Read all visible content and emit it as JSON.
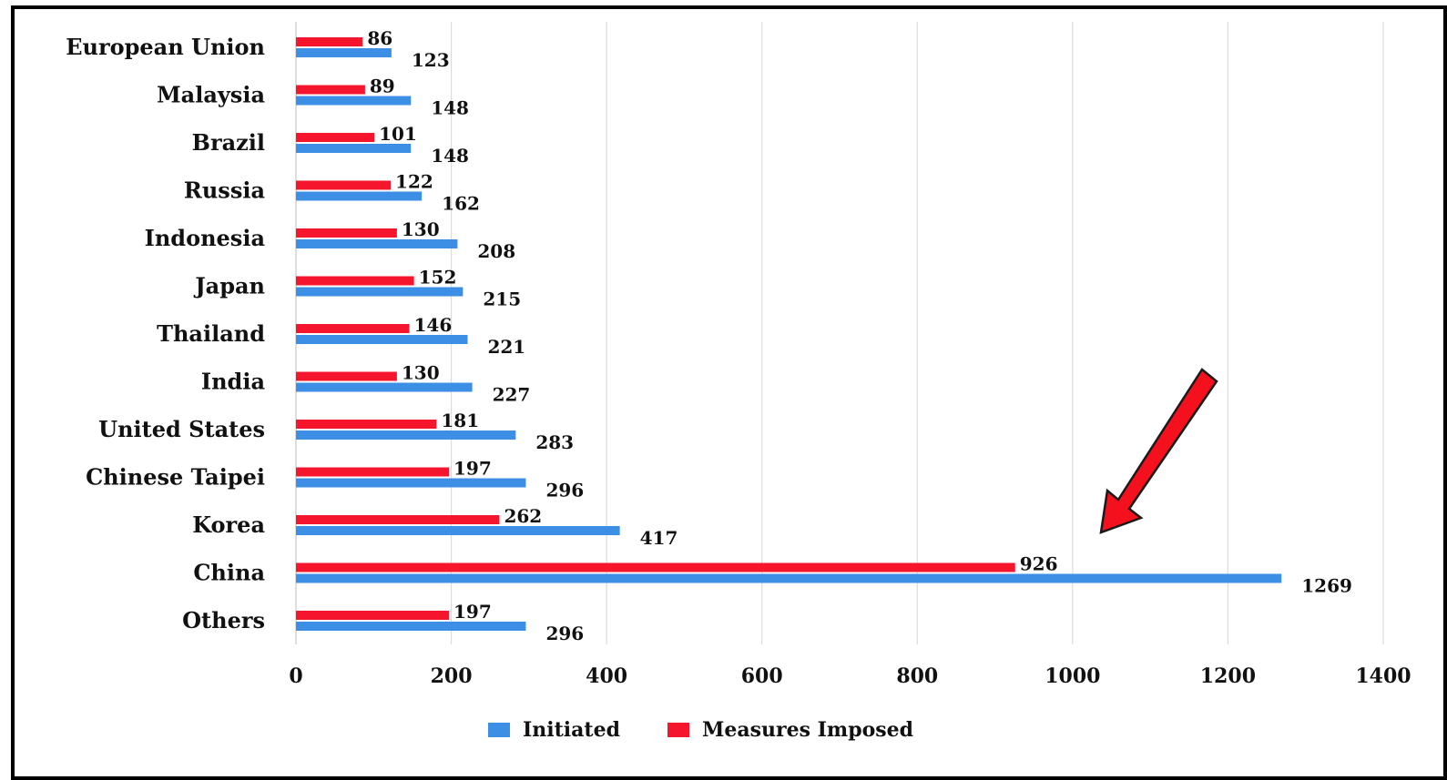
{
  "chart_data": {
    "type": "bar",
    "orientation": "horizontal",
    "categories": [
      "European Union",
      "Malaysia",
      "Brazil",
      "Russia",
      "Indonesia",
      "Japan",
      "Thailand",
      "India",
      "United States",
      "Chinese Taipei",
      "Korea",
      "China",
      "Others"
    ],
    "series": [
      {
        "name": "Initiated",
        "color": "#3d8fe6",
        "values": [
          123,
          148,
          148,
          162,
          208,
          215,
          221,
          227,
          283,
          296,
          417,
          1269,
          296
        ]
      },
      {
        "name": "Measures Imposed",
        "color": "#f5162e",
        "values": [
          86,
          89,
          101,
          122,
          130,
          152,
          146,
          130,
          181,
          197,
          262,
          926,
          197
        ]
      }
    ],
    "xlim": [
      0,
      1400
    ],
    "xticks": [
      "0",
      "200",
      "400",
      "600",
      "800",
      "1000",
      "1200",
      "1400"
    ],
    "grid": true,
    "legend_position": "bottom",
    "annotation": {
      "type": "arrow",
      "color": "#f5101e",
      "points_to": "China"
    }
  }
}
